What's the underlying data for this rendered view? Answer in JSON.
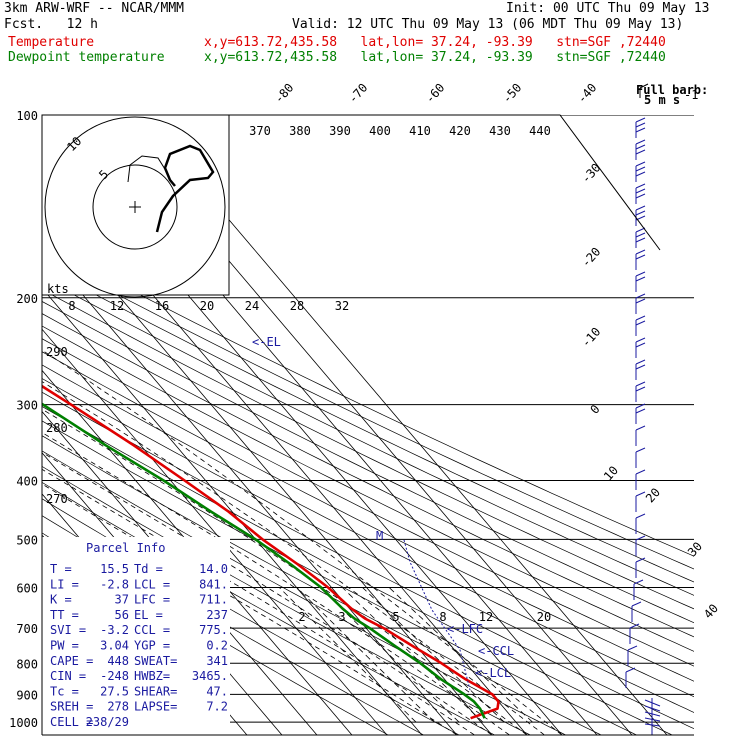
{
  "header": {
    "model": "3km ARW-WRF -- NCAR/MMM",
    "init": "Init: 00 UTC Thu 09 May 13",
    "fcst": "Fcst.   12 h",
    "valid": "Valid: 12 UTC Thu 09 May 13 (06 MDT Thu 09 May 13)",
    "temp_label": "Temperature",
    "temp_info": "x,y=613.72,435.58   lat,lon= 37.24, -93.39   stn=SGF ,72440",
    "dew_label": "Dewpoint temperature",
    "dew_info": "x,y=613.72,435.58   lat,lon= 37.24, -93.39   stn=SGF ,72440"
  },
  "legend": {
    "barb_title": "Full barb:",
    "barb_value": "5 m s",
    "barb_exp": "-1"
  },
  "colors": {
    "temperature": "#e00000",
    "dewpoint": "#008000",
    "parcel": "#1a1aa0",
    "grid": "#000000"
  },
  "hodograph": {
    "speed_label": "kts",
    "ticks": [
      "8",
      "12",
      "16",
      "20",
      "24",
      "28",
      "32"
    ],
    "ring_labels": [
      "5",
      "10"
    ]
  },
  "parcel_info": {
    "title": "Parcel Info",
    "rows": [
      [
        "T  =",
        "15.5",
        "Td =",
        "14.0"
      ],
      [
        "LI =",
        "-2.8",
        "LCL =",
        "841."
      ],
      [
        "K  =",
        "37",
        "LFC =",
        "711."
      ],
      [
        "TT =",
        "56",
        "EL =",
        "237"
      ],
      [
        "SVI =",
        "-3.2",
        "CCL =",
        "775."
      ],
      [
        "PW =",
        "3.04",
        "YGP =",
        "0.2"
      ],
      [
        "CAPE =",
        "448",
        "SWEAT=",
        "341"
      ],
      [
        "CIN =",
        "-248",
        "HWBZ=",
        "3465."
      ],
      [
        "Tc =",
        "27.5",
        "SHEAR=",
        "47."
      ],
      [
        "SREH =",
        "278",
        "LAPSE=",
        "7.2"
      ],
      [
        "CELL =",
        "238/29",
        "",
        ""
      ]
    ]
  },
  "level_marks": {
    "el": "<-EL",
    "lfc": "<-LFC",
    "ccl": "<-CCL",
    "lcl": "<-LCL",
    "m": "M"
  },
  "chart_data": {
    "type": "line",
    "title": "",
    "y_axis": {
      "label": "",
      "scale": "log",
      "range": [
        1000,
        100
      ],
      "ticks": [
        100,
        200,
        300,
        400,
        500,
        600,
        700,
        800,
        900,
        1000
      ]
    },
    "isotherm_labels": [
      -80,
      -70,
      -60,
      -50,
      -40,
      -30,
      -20,
      -10,
      0,
      10,
      20,
      30,
      40
    ],
    "theta_labels": [
      370,
      380,
      390,
      400,
      410,
      420,
      430,
      440
    ],
    "theta_side_labels": [
      290,
      280,
      270
    ],
    "mixing_ratio_labels": [
      "2",
      "3",
      "5",
      "8",
      "12",
      "20"
    ],
    "series": [
      {
        "name": "Temperature",
        "points": [
          [
            985,
            8
          ],
          [
            950,
            18
          ],
          [
            925,
            20
          ],
          [
            900,
            20
          ],
          [
            850,
            16
          ],
          [
            800,
            13
          ],
          [
            750,
            9
          ],
          [
            700,
            5
          ],
          [
            675,
            2
          ],
          [
            650,
            0.5
          ],
          [
            600,
            -1
          ],
          [
            550,
            -4
          ],
          [
            500,
            -8
          ],
          [
            450,
            -11
          ],
          [
            400,
            -16
          ],
          [
            350,
            -22
          ],
          [
            300,
            -30
          ],
          [
            250,
            -40
          ],
          [
            225,
            -46
          ],
          [
            210,
            -50
          ],
          [
            200,
            -49
          ],
          [
            180,
            -49
          ],
          [
            160,
            -52
          ],
          [
            140,
            -55
          ],
          [
            120,
            -58
          ],
          [
            100,
            -60
          ]
        ]
      },
      {
        "name": "Dewpoint temperature",
        "points": [
          [
            985,
            12
          ],
          [
            950,
            13
          ],
          [
            925,
            13
          ],
          [
            900,
            12
          ],
          [
            850,
            9
          ],
          [
            800,
            7
          ],
          [
            750,
            4
          ],
          [
            700,
            1
          ],
          [
            675,
            -1
          ],
          [
            650,
            -2
          ],
          [
            600,
            -3
          ],
          [
            550,
            -6
          ],
          [
            500,
            -10
          ],
          [
            450,
            -16
          ],
          [
            400,
            -22
          ],
          [
            350,
            -30
          ],
          [
            300,
            -38
          ],
          [
            250,
            -48
          ],
          [
            220,
            -55
          ],
          [
            200,
            -62
          ],
          [
            180,
            -72
          ],
          [
            160,
            -80
          ],
          [
            140,
            -88
          ],
          [
            120,
            -96
          ],
          [
            100,
            -100
          ]
        ]
      }
    ],
    "grid": true,
    "wind_barbs": true
  }
}
